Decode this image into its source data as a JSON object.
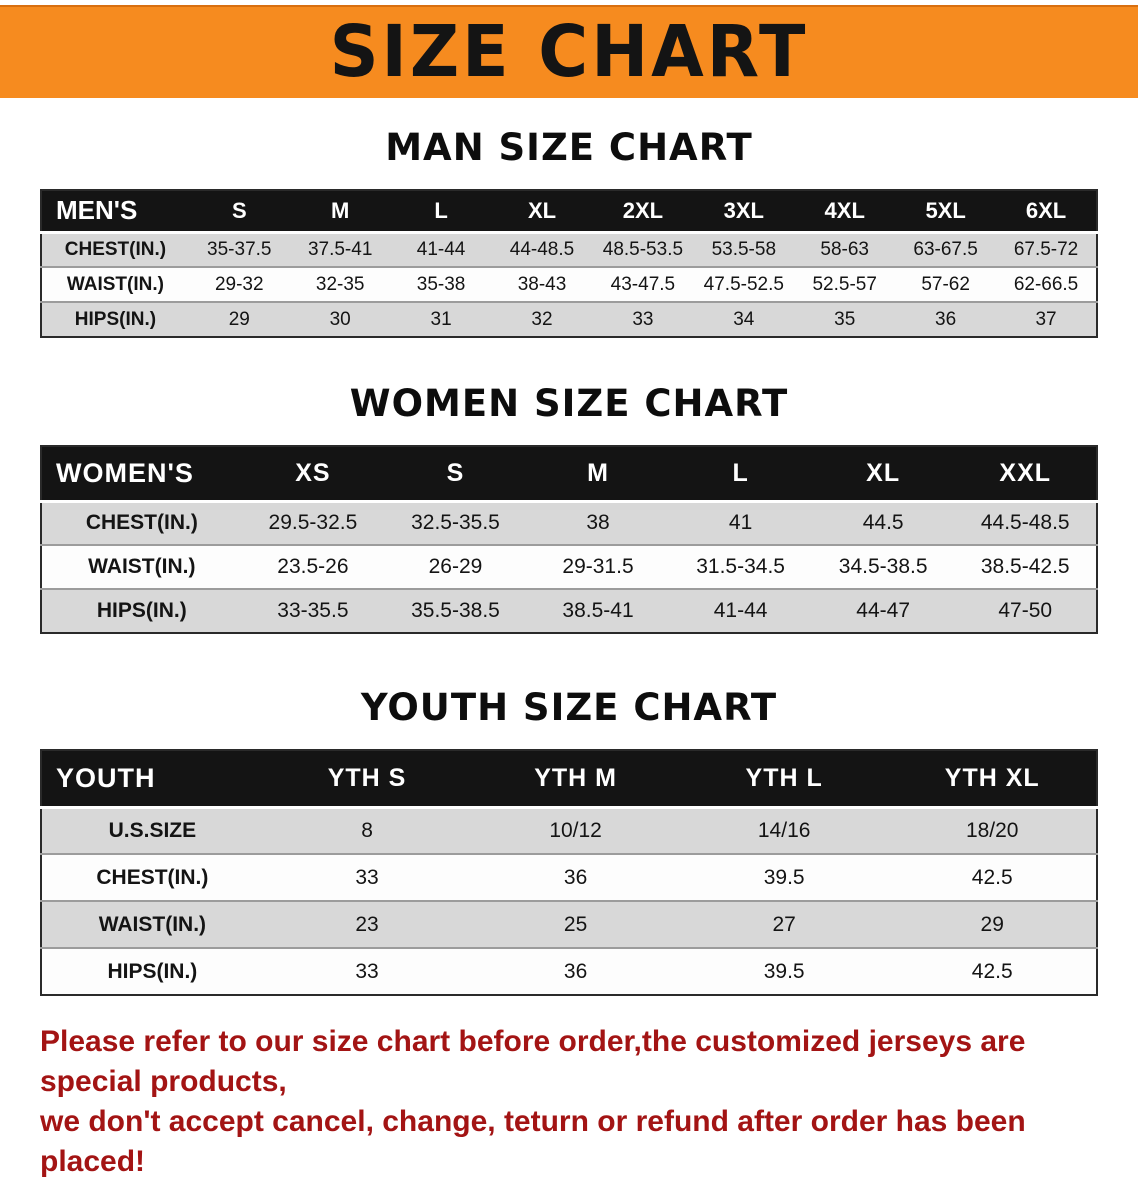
{
  "banner": {
    "title": "SIZE CHART"
  },
  "men": {
    "heading": "MAN SIZE CHART",
    "table": {
      "header": [
        "MEN'S",
        "S",
        "M",
        "L",
        "XL",
        "2XL",
        "3XL",
        "4XL",
        "5XL",
        "6XL"
      ],
      "rows": [
        [
          "CHEST(IN.)",
          "35-37.5",
          "37.5-41",
          "41-44",
          "44-48.5",
          "48.5-53.5",
          "53.5-58",
          "58-63",
          "63-67.5",
          "67.5-72"
        ],
        [
          "WAIST(IN.)",
          "29-32",
          "32-35",
          "35-38",
          "38-43",
          "43-47.5",
          "47.5-52.5",
          "52.5-57",
          "57-62",
          "62-66.5"
        ],
        [
          "HIPS(IN.)",
          "29",
          "30",
          "31",
          "32",
          "33",
          "34",
          "35",
          "36",
          "37"
        ]
      ]
    }
  },
  "women": {
    "heading": "WOMEN SIZE CHART",
    "table": {
      "header": [
        "WOMEN'S",
        "XS",
        "S",
        "M",
        "L",
        "XL",
        "XXL"
      ],
      "rows": [
        [
          "CHEST(IN.)",
          "29.5-32.5",
          "32.5-35.5",
          "38",
          "41",
          "44.5",
          "44.5-48.5"
        ],
        [
          "WAIST(IN.)",
          "23.5-26",
          "26-29",
          "29-31.5",
          "31.5-34.5",
          "34.5-38.5",
          "38.5-42.5"
        ],
        [
          "HIPS(IN.)",
          "33-35.5",
          "35.5-38.5",
          "38.5-41",
          "41-44",
          "44-47",
          "47-50"
        ]
      ]
    }
  },
  "youth": {
    "heading": "YOUTH SIZE CHART",
    "table": {
      "header": [
        "YOUTH",
        "YTH S",
        "YTH M",
        "YTH L",
        "YTH XL"
      ],
      "rows": [
        [
          "U.S.SIZE",
          "8",
          "10/12",
          "14/16",
          "18/20"
        ],
        [
          "CHEST(IN.)",
          "33",
          "36",
          "39.5",
          "42.5"
        ],
        [
          "WAIST(IN.)",
          "23",
          "25",
          "27",
          "29"
        ],
        [
          "HIPS(IN.)",
          "33",
          "36",
          "39.5",
          "42.5"
        ]
      ]
    }
  },
  "notice": {
    "line1": "Please refer to our size chart before order,the customized jerseys are special products,",
    "line2": "we don't accept cancel, change, teturn or refund after order has been placed!"
  },
  "colors": {
    "banner_orange": "#f68b1f",
    "table_header_black": "#141414",
    "row_gray": "#d8d8d8",
    "notice_red": "#a31414"
  }
}
